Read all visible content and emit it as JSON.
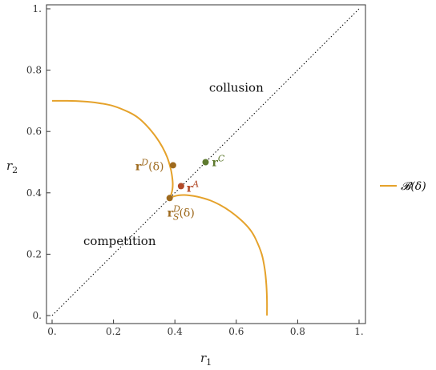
{
  "chart_data": {
    "type": "line",
    "xlabel": "r",
    "xlabel_sub": "1",
    "ylabel": "r",
    "ylabel_sub": "2",
    "xlim": [
      0,
      1
    ],
    "ylim": [
      0,
      1
    ],
    "x_ticks": [
      0,
      0.2,
      0.4,
      0.6,
      0.8,
      1
    ],
    "x_tick_labels": [
      "0.",
      "0.2",
      "0.4",
      "0.6",
      "0.8",
      "1."
    ],
    "y_ticks": [
      0,
      0.2,
      0.4,
      0.6,
      0.8,
      1
    ],
    "y_tick_labels": [
      "0.",
      "0.2",
      "0.4",
      "0.6",
      "0.8",
      "1."
    ],
    "grid": false,
    "legend_position": "right",
    "series": [
      {
        "name": "𝓑(δ)",
        "color": "#e5a22b",
        "segments": [
          {
            "x": [
              0.0,
              0.05,
              0.1,
              0.15,
              0.2,
              0.25,
              0.28,
              0.31,
              0.34,
              0.36,
              0.375,
              0.385,
              0.39,
              0.393,
              0.392,
              0.388,
              0.383
            ],
            "y": [
              0.7,
              0.7,
              0.698,
              0.693,
              0.683,
              0.663,
              0.645,
              0.617,
              0.58,
              0.548,
              0.516,
              0.484,
              0.46,
              0.432,
              0.412,
              0.395,
              0.383
            ]
          },
          {
            "x": [
              0.383,
              0.395,
              0.412,
              0.432,
              0.46,
              0.484,
              0.516,
              0.548,
              0.58,
              0.617,
              0.645,
              0.663,
              0.683,
              0.693,
              0.698,
              0.7,
              0.7
            ],
            "y": [
              0.383,
              0.388,
              0.392,
              0.393,
              0.39,
              0.385,
              0.375,
              0.36,
              0.34,
              0.31,
              0.28,
              0.25,
              0.2,
              0.15,
              0.1,
              0.05,
              0.0
            ]
          }
        ]
      },
      {
        "name": "",
        "style": "dotted",
        "color": "#000000",
        "x": [
          0,
          1
        ],
        "y": [
          0,
          1
        ]
      }
    ],
    "points": [
      {
        "label": "r",
        "sup": "D",
        "suffix": "(δ)",
        "x": 0.394,
        "y": 0.49,
        "color": "#9e6a1e"
      },
      {
        "label": "r",
        "sup": "A",
        "suffix": "",
        "x": 0.42,
        "y": 0.422,
        "color": "#b24a28"
      },
      {
        "label": "r",
        "sup": "C",
        "suffix": "",
        "x": 0.5,
        "y": 0.5,
        "color": "#5e7a2e"
      },
      {
        "label": "r",
        "sup": "D",
        "sub": "S",
        "suffix": "(δ)",
        "x": 0.383,
        "y": 0.383,
        "color": "#9e6a1e"
      }
    ],
    "annotations": [
      {
        "text": "collusion",
        "x": 0.6,
        "y": 0.73
      },
      {
        "text": "competition",
        "x": 0.22,
        "y": 0.23
      }
    ]
  }
}
